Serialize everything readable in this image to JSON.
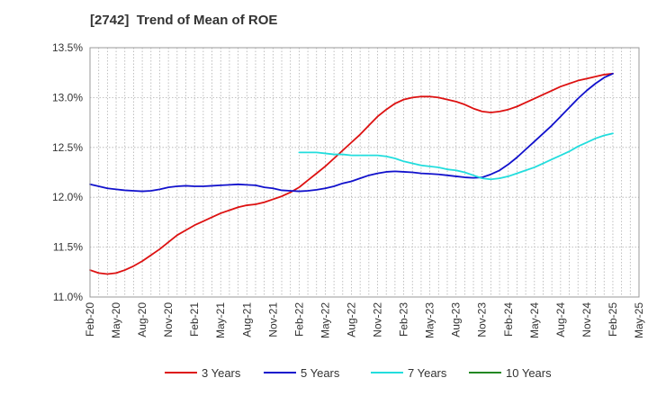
{
  "chart_data": {
    "type": "line",
    "title": "[2742]  Trend of Mean of ROE",
    "xlabel": "",
    "ylabel": "",
    "x_ticks": [
      "Feb-20",
      "May-20",
      "Aug-20",
      "Nov-20",
      "Feb-21",
      "May-21",
      "Aug-21",
      "Nov-21",
      "Feb-22",
      "May-22",
      "Aug-22",
      "Nov-22",
      "Feb-23",
      "May-23",
      "Aug-23",
      "Nov-23",
      "Feb-24",
      "May-24",
      "Aug-24",
      "Nov-24",
      "Feb-25",
      "May-25"
    ],
    "y_ticks": [
      "11.0%",
      "11.5%",
      "12.0%",
      "12.5%",
      "13.0%",
      "13.5%"
    ],
    "ylim": [
      11.0,
      13.5
    ],
    "grid": "dotted",
    "legend_position": "bottom",
    "series": [
      {
        "name": "3 Years",
        "color": "#dd1111",
        "points": [
          [
            "Feb-20",
            11.27
          ],
          [
            "Mar-20",
            11.24
          ],
          [
            "Apr-20",
            11.23
          ],
          [
            "May-20",
            11.24
          ],
          [
            "Jun-20",
            11.27
          ],
          [
            "Jul-20",
            11.31
          ],
          [
            "Aug-20",
            11.36
          ],
          [
            "Sep-20",
            11.42
          ],
          [
            "Oct-20",
            11.48
          ],
          [
            "Nov-20",
            11.55
          ],
          [
            "Dec-20",
            11.62
          ],
          [
            "Jan-21",
            11.67
          ],
          [
            "Feb-21",
            11.72
          ],
          [
            "Mar-21",
            11.76
          ],
          [
            "Apr-21",
            11.8
          ],
          [
            "May-21",
            11.84
          ],
          [
            "Jun-21",
            11.87
          ],
          [
            "Jul-21",
            11.9
          ],
          [
            "Aug-21",
            11.92
          ],
          [
            "Sep-21",
            11.93
          ],
          [
            "Oct-21",
            11.95
          ],
          [
            "Nov-21",
            11.98
          ],
          [
            "Dec-21",
            12.01
          ],
          [
            "Jan-22",
            12.05
          ],
          [
            "Feb-22",
            12.1
          ],
          [
            "Mar-22",
            12.17
          ],
          [
            "Apr-22",
            12.24
          ],
          [
            "May-22",
            12.31
          ],
          [
            "Jun-22",
            12.39
          ],
          [
            "Jul-22",
            12.47
          ],
          [
            "Aug-22",
            12.55
          ],
          [
            "Sep-22",
            12.63
          ],
          [
            "Oct-22",
            12.72
          ],
          [
            "Nov-22",
            12.81
          ],
          [
            "Dec-22",
            12.88
          ],
          [
            "Jan-23",
            12.94
          ],
          [
            "Feb-23",
            12.98
          ],
          [
            "Mar-23",
            13.0
          ],
          [
            "Apr-23",
            13.01
          ],
          [
            "May-23",
            13.01
          ],
          [
            "Jun-23",
            13.0
          ],
          [
            "Jul-23",
            12.98
          ],
          [
            "Aug-23",
            12.96
          ],
          [
            "Sep-23",
            12.93
          ],
          [
            "Oct-23",
            12.89
          ],
          [
            "Nov-23",
            12.86
          ],
          [
            "Dec-23",
            12.85
          ],
          [
            "Jan-24",
            12.86
          ],
          [
            "Feb-24",
            12.88
          ],
          [
            "Mar-24",
            12.91
          ],
          [
            "Apr-24",
            12.95
          ],
          [
            "May-24",
            12.99
          ],
          [
            "Jun-24",
            13.03
          ],
          [
            "Jul-24",
            13.07
          ],
          [
            "Aug-24",
            13.11
          ],
          [
            "Sep-24",
            13.14
          ],
          [
            "Oct-24",
            13.17
          ],
          [
            "Nov-24",
            13.19
          ],
          [
            "Dec-24",
            13.21
          ],
          [
            "Jan-25",
            13.23
          ],
          [
            "Feb-25",
            13.24
          ]
        ]
      },
      {
        "name": "5 Years",
        "color": "#1111cc",
        "points": [
          [
            "Feb-20",
            12.13
          ],
          [
            "Mar-20",
            12.11
          ],
          [
            "Apr-20",
            12.09
          ],
          [
            "May-20",
            12.08
          ],
          [
            "Jun-20",
            12.07
          ],
          [
            "Jul-20",
            12.065
          ],
          [
            "Aug-20",
            12.06
          ],
          [
            "Sep-20",
            12.065
          ],
          [
            "Oct-20",
            12.08
          ],
          [
            "Nov-20",
            12.1
          ],
          [
            "Dec-20",
            12.11
          ],
          [
            "Jan-21",
            12.115
          ],
          [
            "Feb-21",
            12.11
          ],
          [
            "Mar-21",
            12.11
          ],
          [
            "Apr-21",
            12.115
          ],
          [
            "May-21",
            12.12
          ],
          [
            "Jun-21",
            12.125
          ],
          [
            "Jul-21",
            12.13
          ],
          [
            "Aug-21",
            12.125
          ],
          [
            "Sep-21",
            12.12
          ],
          [
            "Oct-21",
            12.1
          ],
          [
            "Nov-21",
            12.09
          ],
          [
            "Dec-21",
            12.07
          ],
          [
            "Jan-22",
            12.065
          ],
          [
            "Feb-22",
            12.06
          ],
          [
            "Mar-22",
            12.065
          ],
          [
            "Apr-22",
            12.075
          ],
          [
            "May-22",
            12.09
          ],
          [
            "Jun-22",
            12.11
          ],
          [
            "Jul-22",
            12.14
          ],
          [
            "Aug-22",
            12.16
          ],
          [
            "Sep-22",
            12.19
          ],
          [
            "Oct-22",
            12.22
          ],
          [
            "Nov-22",
            12.24
          ],
          [
            "Dec-22",
            12.255
          ],
          [
            "Jan-23",
            12.26
          ],
          [
            "Feb-23",
            12.255
          ],
          [
            "Mar-23",
            12.25
          ],
          [
            "Apr-23",
            12.24
          ],
          [
            "May-23",
            12.235
          ],
          [
            "Jun-23",
            12.23
          ],
          [
            "Jul-23",
            12.22
          ],
          [
            "Aug-23",
            12.21
          ],
          [
            "Sep-23",
            12.2
          ],
          [
            "Oct-23",
            12.195
          ],
          [
            "Nov-23",
            12.2
          ],
          [
            "Dec-23",
            12.23
          ],
          [
            "Jan-24",
            12.27
          ],
          [
            "Feb-24",
            12.33
          ],
          [
            "Mar-24",
            12.4
          ],
          [
            "Apr-24",
            12.48
          ],
          [
            "May-24",
            12.56
          ],
          [
            "Jun-24",
            12.64
          ],
          [
            "Jul-24",
            12.72
          ],
          [
            "Aug-24",
            12.81
          ],
          [
            "Sep-24",
            12.9
          ],
          [
            "Oct-24",
            12.99
          ],
          [
            "Nov-24",
            13.07
          ],
          [
            "Dec-24",
            13.14
          ],
          [
            "Jan-25",
            13.2
          ],
          [
            "Feb-25",
            13.24
          ]
        ]
      },
      {
        "name": "7 Years",
        "color": "#22dddd",
        "points": [
          [
            "Feb-22",
            12.45
          ],
          [
            "Mar-22",
            12.45
          ],
          [
            "Apr-22",
            12.45
          ],
          [
            "May-22",
            12.44
          ],
          [
            "Jun-22",
            12.43
          ],
          [
            "Jul-22",
            12.43
          ],
          [
            "Aug-22",
            12.42
          ],
          [
            "Sep-22",
            12.42
          ],
          [
            "Oct-22",
            12.42
          ],
          [
            "Nov-22",
            12.42
          ],
          [
            "Dec-22",
            12.41
          ],
          [
            "Jan-23",
            12.39
          ],
          [
            "Feb-23",
            12.36
          ],
          [
            "Mar-23",
            12.34
          ],
          [
            "Apr-23",
            12.32
          ],
          [
            "May-23",
            12.31
          ],
          [
            "Jun-23",
            12.3
          ],
          [
            "Jul-23",
            12.28
          ],
          [
            "Aug-23",
            12.27
          ],
          [
            "Sep-23",
            12.25
          ],
          [
            "Oct-23",
            12.22
          ],
          [
            "Nov-23",
            12.19
          ],
          [
            "Dec-23",
            12.18
          ],
          [
            "Jan-24",
            12.19
          ],
          [
            "Feb-24",
            12.21
          ],
          [
            "Mar-24",
            12.24
          ],
          [
            "Apr-24",
            12.27
          ],
          [
            "May-24",
            12.3
          ],
          [
            "Jun-24",
            12.34
          ],
          [
            "Jul-24",
            12.38
          ],
          [
            "Aug-24",
            12.42
          ],
          [
            "Sep-24",
            12.46
          ],
          [
            "Oct-24",
            12.51
          ],
          [
            "Nov-24",
            12.55
          ],
          [
            "Dec-24",
            12.59
          ],
          [
            "Jan-25",
            12.62
          ],
          [
            "Feb-25",
            12.64
          ]
        ]
      },
      {
        "name": "10 Years",
        "color": "#228822",
        "points": []
      }
    ]
  }
}
